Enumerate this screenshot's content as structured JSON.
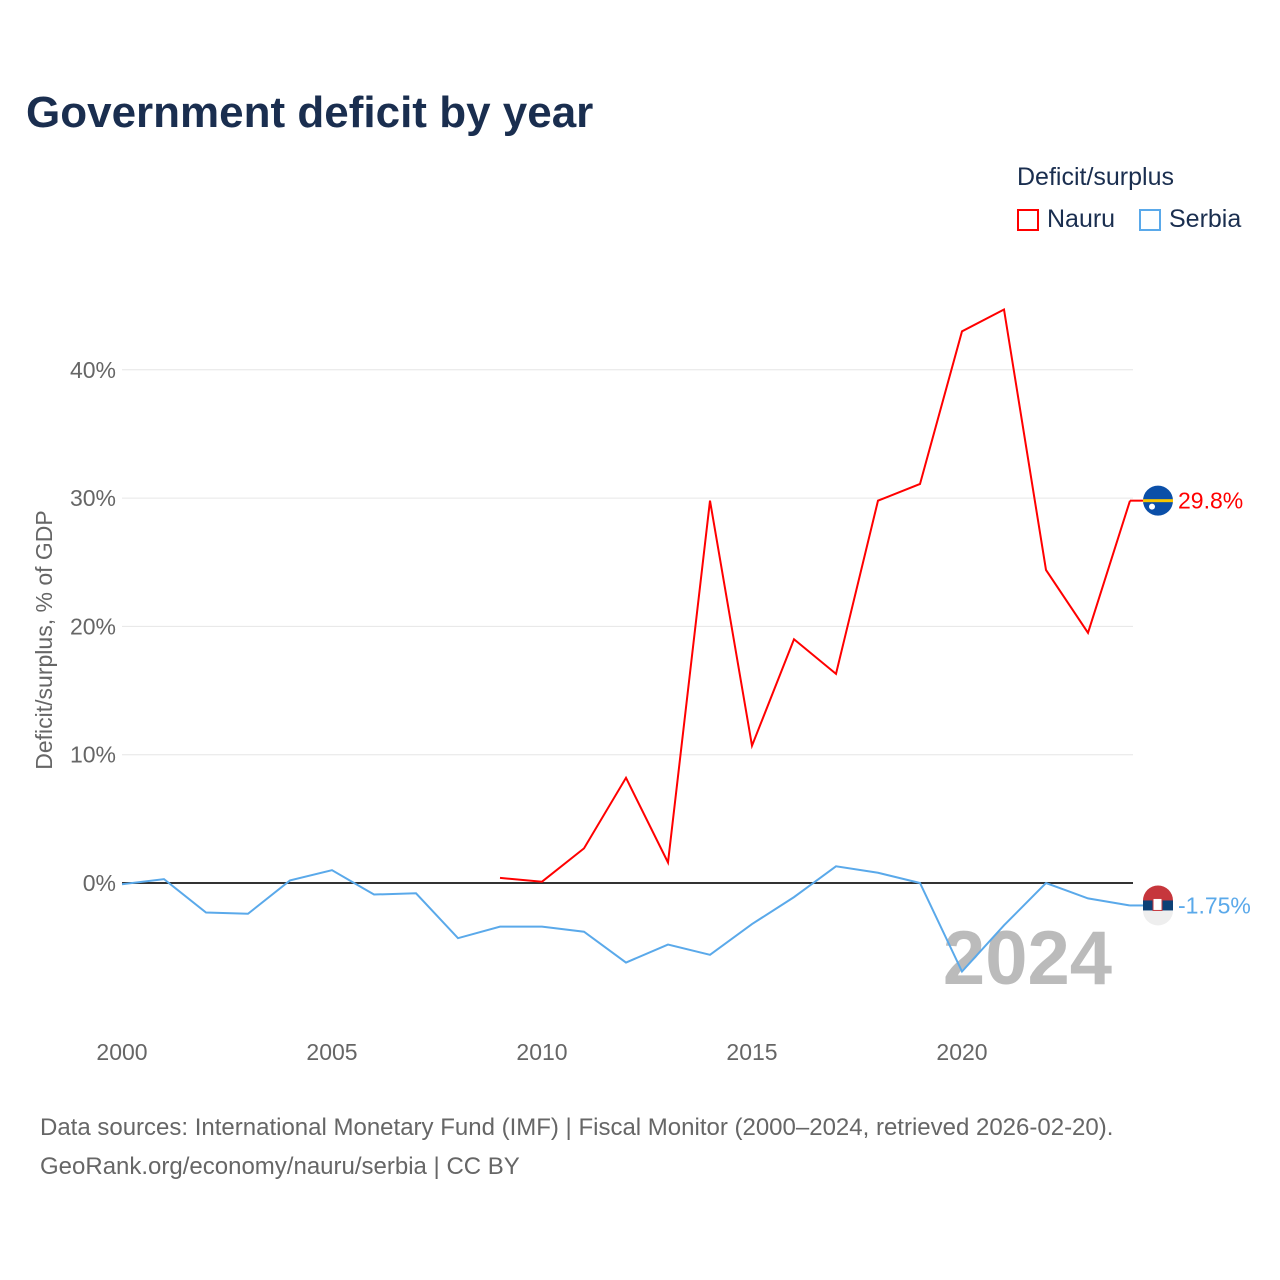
{
  "title": "Government deficit by year",
  "legend": {
    "title": "Deficit/surplus",
    "items": [
      {
        "name": "Nauru",
        "color": "#ff0000"
      },
      {
        "name": "Serbia",
        "color": "#5aa9ea"
      }
    ]
  },
  "source": {
    "line1": "Data sources: International Monetary Fund (IMF) | Fiscal Monitor (2000–2024, retrieved 2026-02-20).",
    "line2": "GeoRank.org/economy/nauru/serbia | CC BY"
  },
  "year_watermark": "2024",
  "chart_data": {
    "type": "line",
    "title": "Government deficit by year",
    "xlabel": "",
    "ylabel": "Deficit/surplus, % of GDP",
    "xlim": [
      2000,
      2024
    ],
    "ylim": [
      -9,
      47
    ],
    "xticks": [
      2000,
      2005,
      2010,
      2015,
      2020
    ],
    "yticks": [
      0,
      10,
      20,
      30,
      40
    ],
    "ytick_labels": [
      "0%",
      "10%",
      "20%",
      "30%",
      "40%"
    ],
    "grid": true,
    "legend_position": "top-right",
    "series": [
      {
        "name": "Nauru",
        "color": "#ff0000",
        "end_label": "29.8%",
        "x": [
          2009,
          2010,
          2011,
          2012,
          2013,
          2014,
          2015,
          2016,
          2017,
          2018,
          2019,
          2020,
          2021,
          2022,
          2023,
          2024
        ],
        "values": [
          0.4,
          0.1,
          2.7,
          8.2,
          1.6,
          29.8,
          10.7,
          19.0,
          16.3,
          29.8,
          31.1,
          43.0,
          44.7,
          24.4,
          19.5,
          29.8
        ]
      },
      {
        "name": "Serbia",
        "color": "#5aa9ea",
        "end_label": "-1.75%",
        "x": [
          2000,
          2001,
          2002,
          2003,
          2004,
          2005,
          2006,
          2007,
          2008,
          2009,
          2010,
          2011,
          2012,
          2013,
          2014,
          2015,
          2016,
          2017,
          2018,
          2019,
          2020,
          2021,
          2022,
          2023,
          2024
        ],
        "values": [
          -0.1,
          0.3,
          -2.3,
          -2.4,
          0.2,
          1.0,
          -0.9,
          -0.8,
          -4.3,
          -3.4,
          -3.4,
          -3.8,
          -6.2,
          -4.8,
          -5.6,
          -3.2,
          -1.1,
          1.3,
          0.8,
          0.0,
          -6.9,
          -3.3,
          0.0,
          -1.2,
          -1.75
        ]
      }
    ]
  }
}
